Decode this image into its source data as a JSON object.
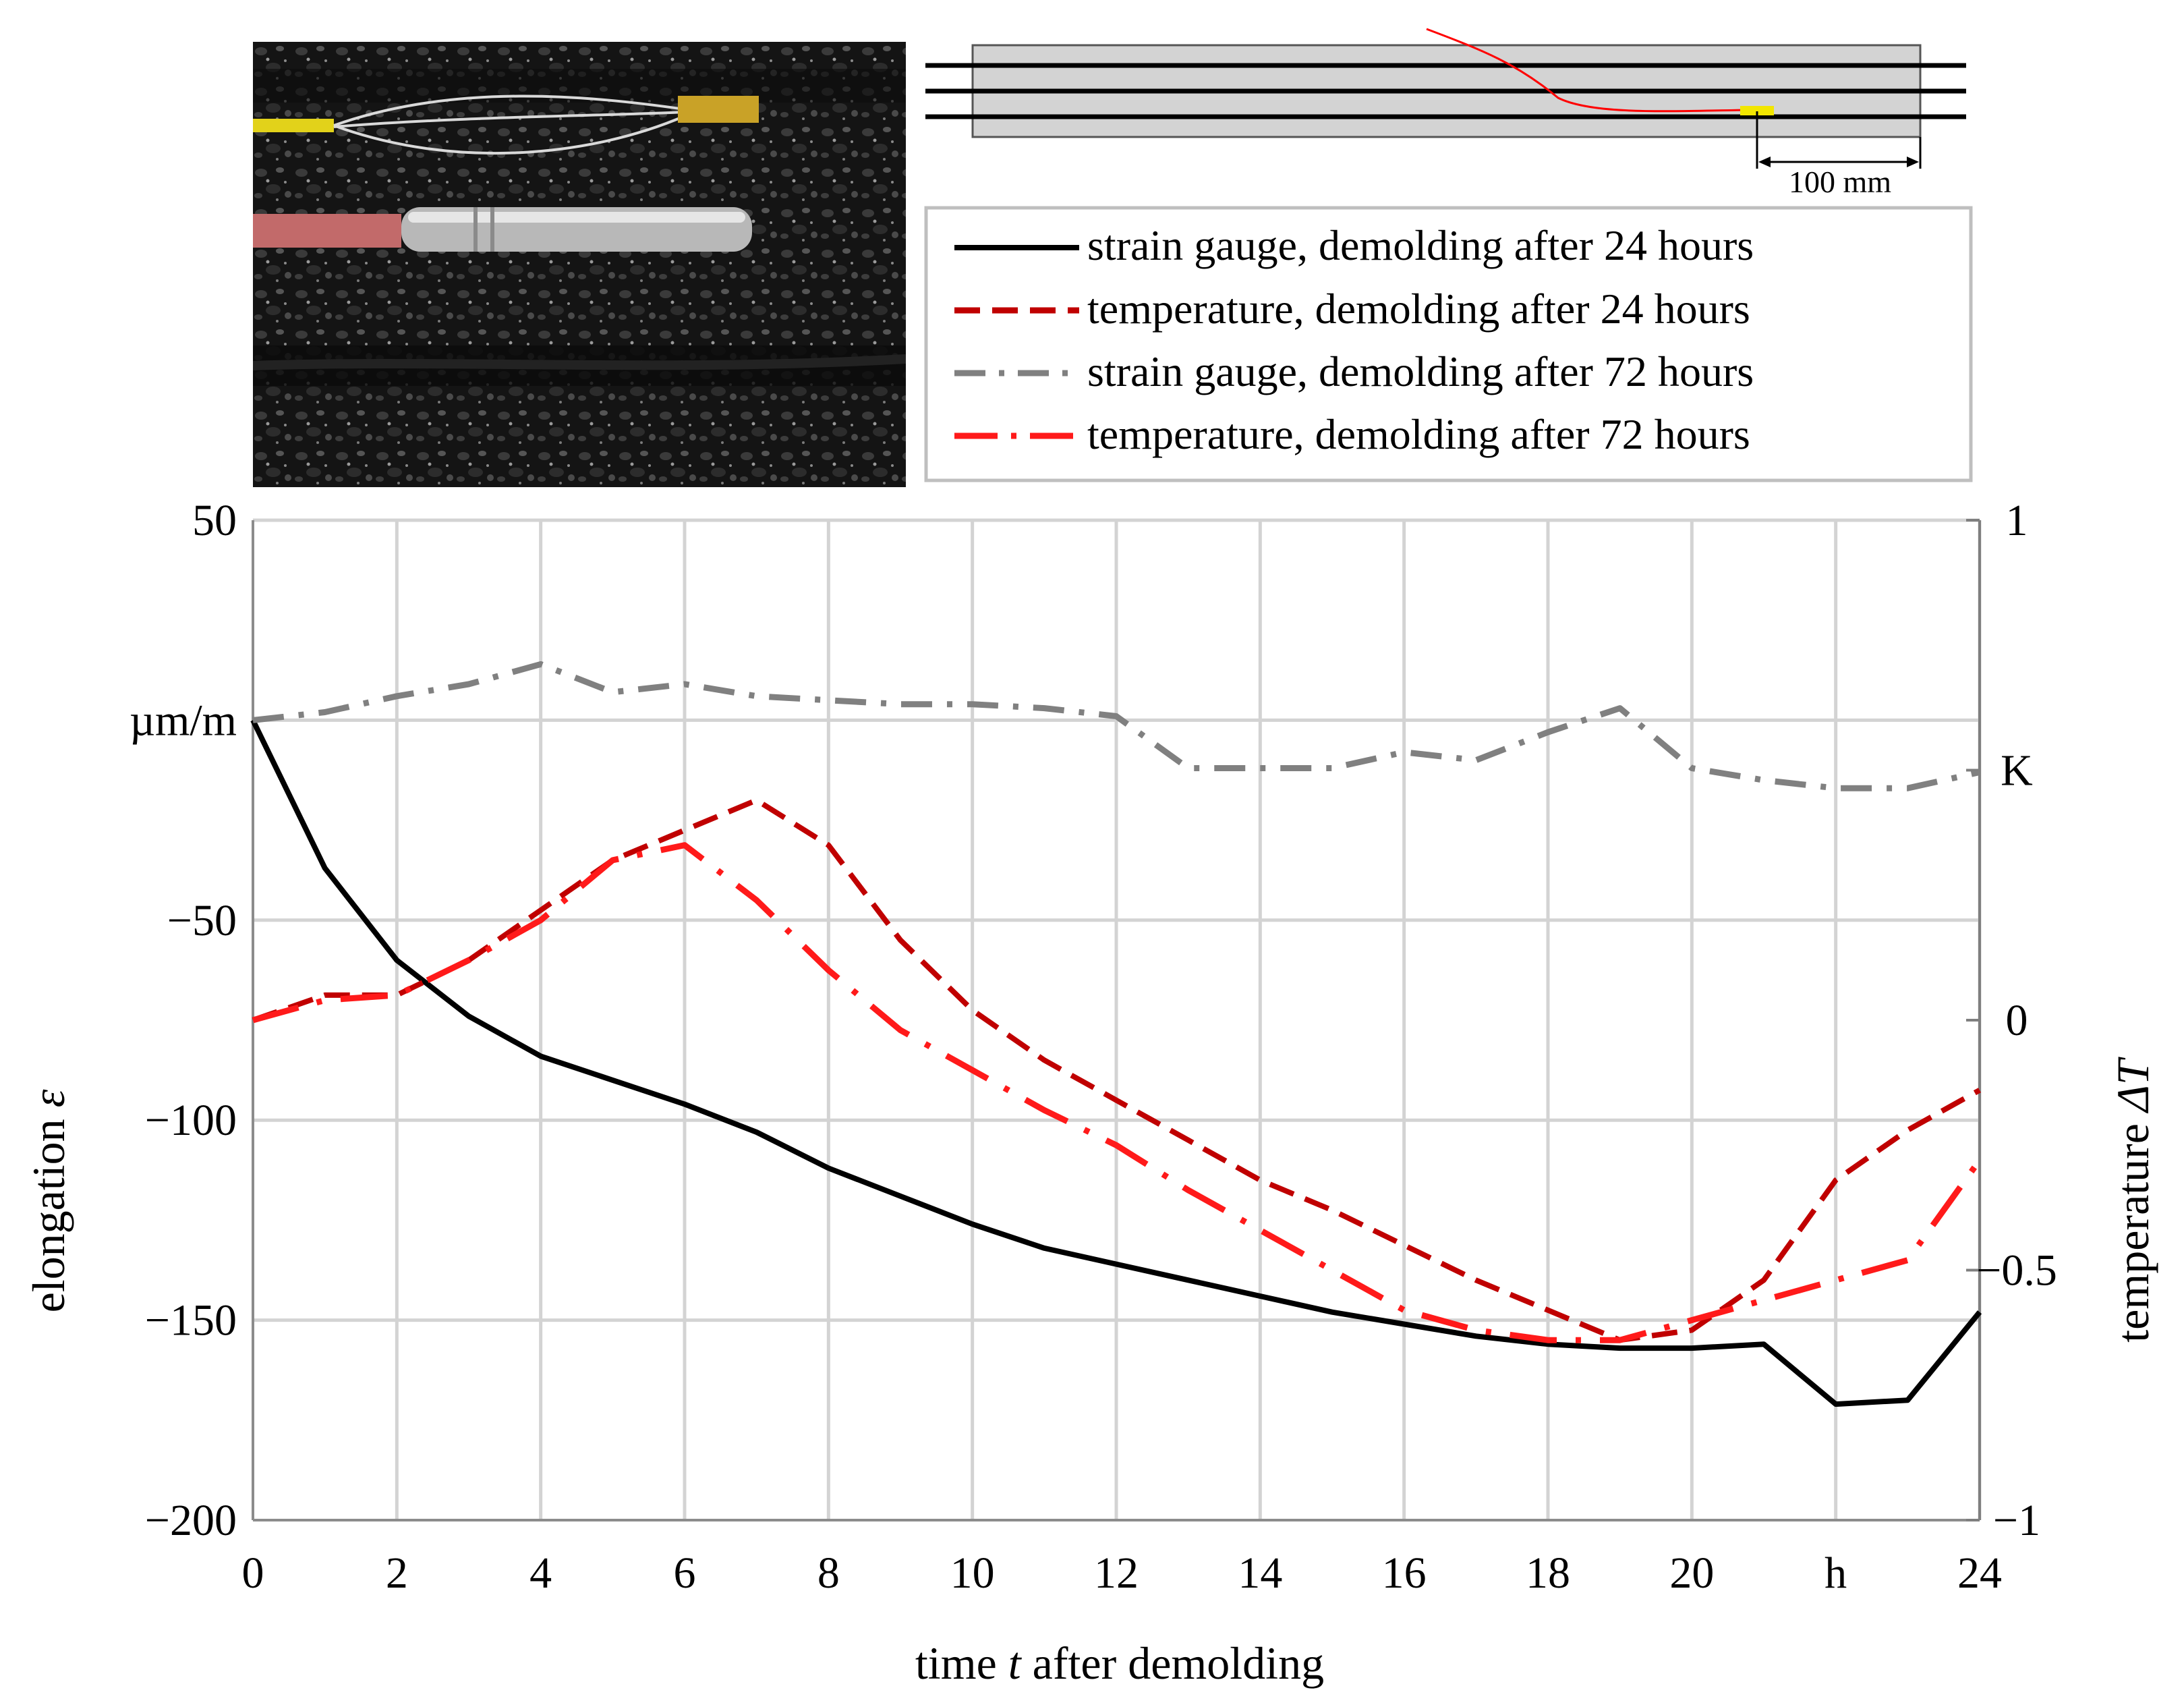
{
  "schematic": {
    "dimension_label": "100 mm"
  },
  "legend": {
    "entries": [
      {
        "label": "strain gauge, demolding after 24 hours",
        "color": "#000000",
        "style": "solid"
      },
      {
        "label": "temperature, demolding after 24 hours",
        "color": "#c00000",
        "style": "dashed"
      },
      {
        "label": "strain gauge, demolding after 72 hours",
        "color": "#808080",
        "style": "dashdot"
      },
      {
        "label": "temperature, demolding after 72 hours",
        "color": "#ff1a1a",
        "style": "longdashdot"
      }
    ]
  },
  "chart_data": {
    "type": "line",
    "xlabel_prefix": "time ",
    "xlabel_var": "t",
    "xlabel_suffix": " after demolding",
    "ylabel_prefix": "elongation ",
    "ylabel_var": "ε",
    "y2label_prefix": "temperature ",
    "y2label_var": "ΔT",
    "x_ticks": [
      "0",
      "2",
      "4",
      "6",
      "8",
      "10",
      "12",
      "14",
      "16",
      "18",
      "20",
      "h",
      "24"
    ],
    "xlim": [
      0,
      24
    ],
    "y_ticks": [
      "50",
      "µm/m",
      "−50",
      "−100",
      "−150",
      "−200"
    ],
    "ylim": [
      -200,
      50
    ],
    "y2_ticks": [
      "1",
      "K",
      "0",
      "−0.5",
      "−1"
    ],
    "y2lim": [
      -1,
      1
    ],
    "grid": true,
    "series": [
      {
        "name": "strain gauge, demolding after 24 hours",
        "axis": "left",
        "color": "#000000",
        "x": [
          0,
          1,
          2,
          3,
          4,
          5,
          6,
          7,
          8,
          9,
          10,
          11,
          12,
          13,
          14,
          15,
          16,
          17,
          18,
          19,
          20,
          21,
          22,
          23,
          24
        ],
        "y": [
          0,
          -37,
          -60,
          -74,
          -84,
          -90,
          -96,
          -103,
          -112,
          -119,
          -126,
          -132,
          -136,
          -140,
          -144,
          -148,
          -151,
          -154,
          -156,
          -157,
          -157,
          -156,
          -171,
          -170,
          -148
        ]
      },
      {
        "name": "temperature, demolding after 24 hours",
        "axis": "right",
        "color": "#c00000",
        "x": [
          0,
          1,
          2,
          3,
          4,
          5,
          6,
          7,
          8,
          9,
          10,
          11,
          12,
          13,
          14,
          15,
          16,
          17,
          18,
          19,
          20,
          21,
          22,
          23,
          24
        ],
        "y": [
          0,
          0.05,
          0.05,
          0.12,
          0.22,
          0.32,
          0.38,
          0.44,
          0.35,
          0.16,
          0.02,
          -0.08,
          -0.16,
          -0.24,
          -0.32,
          -0.38,
          -0.45,
          -0.52,
          -0.58,
          -0.64,
          -0.62,
          -0.52,
          -0.32,
          -0.22,
          -0.14
        ]
      },
      {
        "name": "strain gauge, demolding after 72 hours",
        "axis": "left",
        "color": "#808080",
        "x": [
          0,
          1,
          2,
          3,
          4,
          5,
          6,
          7,
          8,
          9,
          10,
          11,
          12,
          13,
          14,
          15,
          16,
          17,
          18,
          19,
          20,
          21,
          22,
          23,
          24
        ],
        "y": [
          0,
          2,
          6,
          9,
          14,
          7,
          9,
          6,
          5,
          4,
          4,
          3,
          1,
          -12,
          -12,
          -12,
          -8,
          -10,
          -3,
          3,
          -12,
          -15,
          -17,
          -17,
          -13
        ]
      },
      {
        "name": "temperature, demolding after 72 hours",
        "axis": "right",
        "color": "#ff1a1a",
        "x": [
          0,
          1,
          2,
          3,
          4,
          5,
          6,
          7,
          8,
          9,
          10,
          11,
          12,
          13,
          14,
          15,
          16,
          17,
          18,
          19,
          20,
          21,
          22,
          23,
          24
        ],
        "y": [
          0,
          0.04,
          0.05,
          0.12,
          0.2,
          0.32,
          0.35,
          0.24,
          0.1,
          -0.02,
          -0.1,
          -0.18,
          -0.25,
          -0.34,
          -0.42,
          -0.5,
          -0.58,
          -0.62,
          -0.64,
          -0.64,
          -0.6,
          -0.56,
          -0.52,
          -0.48,
          -0.28
        ]
      }
    ]
  }
}
